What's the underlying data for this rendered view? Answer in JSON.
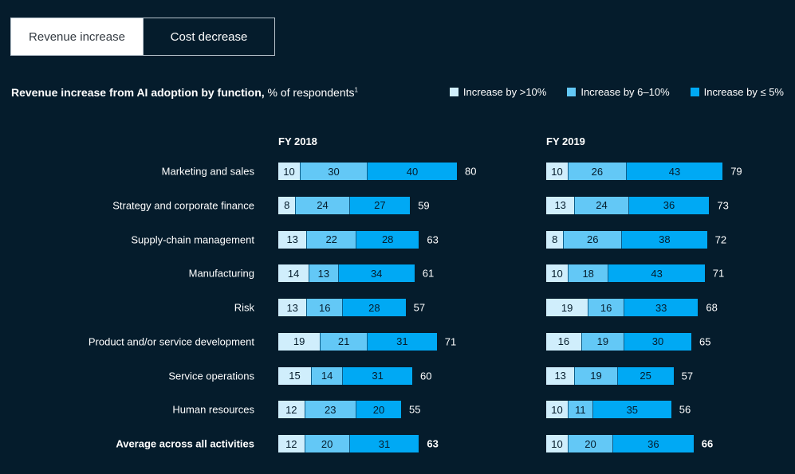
{
  "tabs": [
    {
      "label": "Revenue increase",
      "active": true
    },
    {
      "label": "Cost decrease",
      "active": false
    }
  ],
  "title": {
    "bold": "Revenue increase from AI adoption by function,",
    "rest": " % of respondents",
    "footnote": "1"
  },
  "colors": {
    "background": "#051c2c",
    "increase_gt10": "#d0eefc",
    "increase_6_10": "#63c8f6",
    "increase_le5": "#00a9f4"
  },
  "chart_data": {
    "type": "bar",
    "orientation": "horizontal",
    "stacked": true,
    "title": "Revenue increase from AI adoption by function, % of respondents",
    "legend": {
      "placement": "top-right",
      "entries": [
        "Increase by >10%",
        "Increase by 6–10%",
        "Increase by ≤ 5%"
      ]
    },
    "categories": [
      "Marketing and sales",
      "Strategy and corporate finance",
      "Supply-chain management",
      "Manufacturing",
      "Risk",
      "Product and/or service development",
      "Service operations",
      "Human resources",
      "Average across all activities"
    ],
    "panels": [
      {
        "label": "FY 2018",
        "series": [
          {
            "name": "Increase by >10%",
            "values": [
              10,
              8,
              13,
              14,
              13,
              19,
              15,
              12,
              12
            ]
          },
          {
            "name": "Increase by 6–10%",
            "values": [
              30,
              24,
              22,
              13,
              16,
              21,
              14,
              23,
              20
            ]
          },
          {
            "name": "Increase by ≤ 5%",
            "values": [
              40,
              27,
              28,
              34,
              28,
              31,
              31,
              20,
              31
            ]
          }
        ],
        "totals": [
          80,
          59,
          63,
          61,
          57,
          71,
          60,
          55,
          63
        ]
      },
      {
        "label": "FY 2019",
        "series": [
          {
            "name": "Increase by >10%",
            "values": [
              10,
              13,
              8,
              10,
              19,
              16,
              13,
              10,
              10
            ]
          },
          {
            "name": "Increase by 6–10%",
            "values": [
              26,
              24,
              26,
              18,
              16,
              19,
              19,
              11,
              20
            ]
          },
          {
            "name": "Increase by ≤ 5%",
            "values": [
              43,
              36,
              38,
              43,
              33,
              30,
              25,
              35,
              36
            ]
          }
        ],
        "totals": [
          79,
          73,
          72,
          71,
          68,
          65,
          57,
          56,
          66
        ]
      }
    ]
  }
}
